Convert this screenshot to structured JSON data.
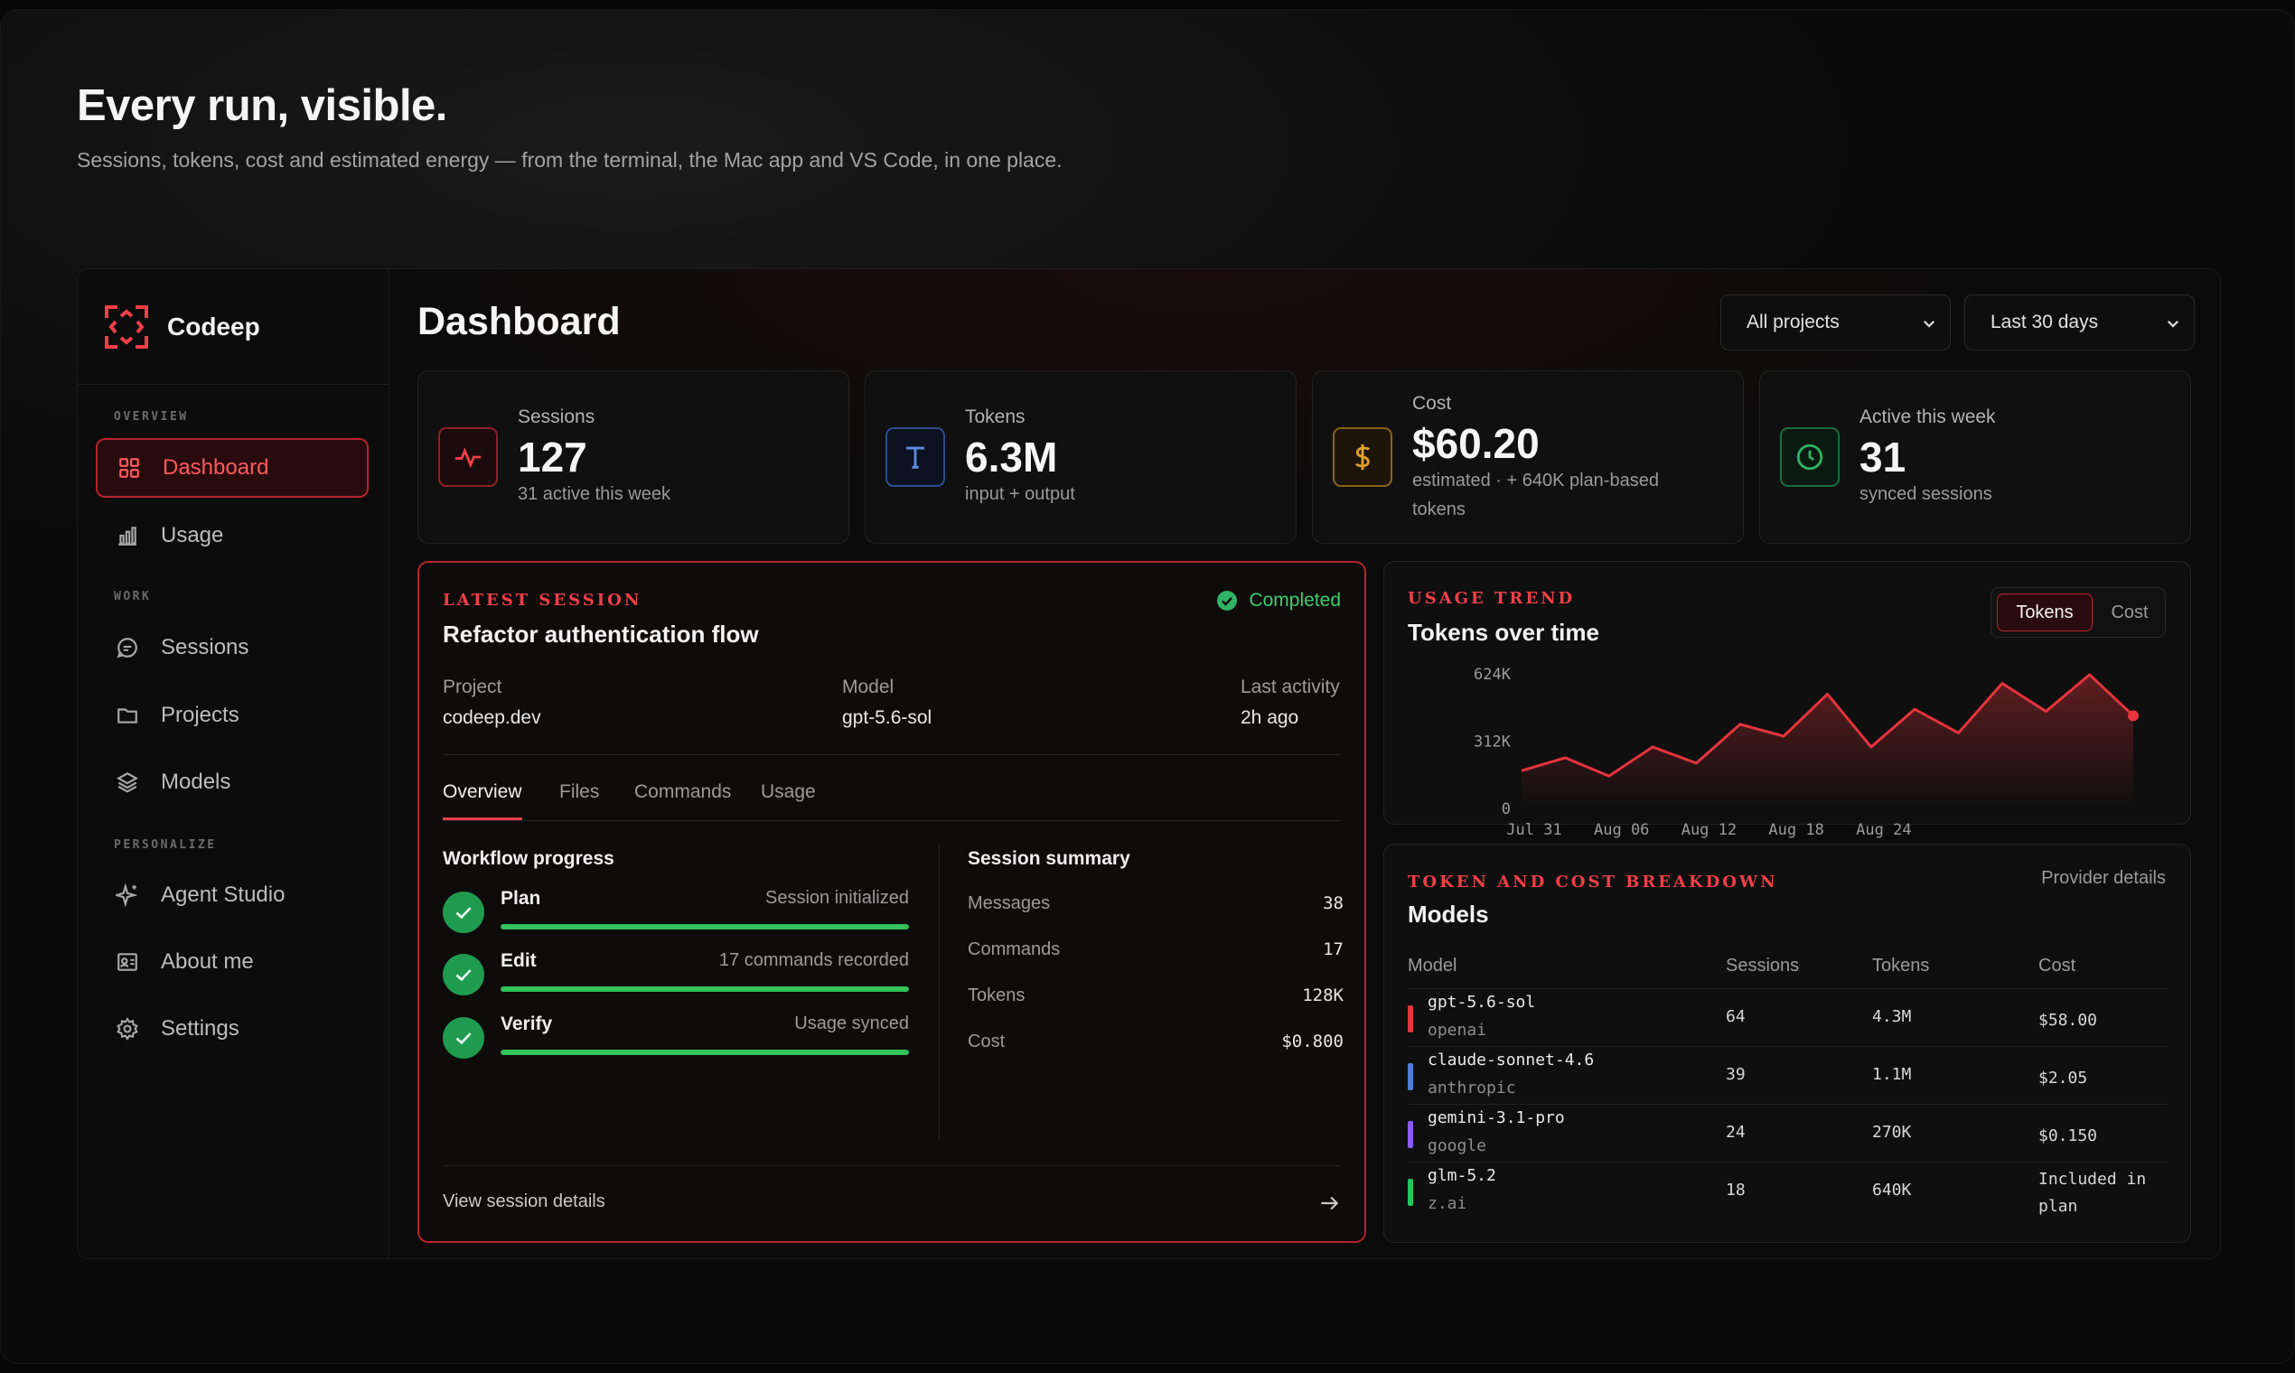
{
  "hero": {
    "title": "Every run, visible.",
    "subtitle": "Sessions, tokens, cost and estimated energy — from the terminal, the Mac app and VS Code, in one place."
  },
  "brand": {
    "name": "Codeep",
    "accent": "#ef3f47"
  },
  "sidebar": {
    "sections": [
      "OVERVIEW",
      "WORK",
      "PERSONALIZE"
    ],
    "items": [
      {
        "label": "Dashboard",
        "icon": "grid-icon",
        "active": true
      },
      {
        "label": "Usage",
        "icon": "bar-chart-icon"
      },
      {
        "label": "Sessions",
        "icon": "chat-bubble-icon"
      },
      {
        "label": "Projects",
        "icon": "folder-icon"
      },
      {
        "label": "Models",
        "icon": "layers-icon"
      },
      {
        "label": "Agent Studio",
        "icon": "sparkle-icon"
      },
      {
        "label": "About me",
        "icon": "id-card-icon"
      },
      {
        "label": "Settings",
        "icon": "gear-icon"
      }
    ]
  },
  "header": {
    "title": "Dashboard",
    "project_filter": "All projects",
    "range_filter": "Last 30 days"
  },
  "stats": [
    {
      "label": "Sessions",
      "value": "127",
      "sub": "31 active this week",
      "icon": "pulse-icon",
      "color": "#ef3f47"
    },
    {
      "label": "Tokens",
      "value": "6.3M",
      "sub": "input + output",
      "icon": "t-letter-icon",
      "color": "#4f7dd9"
    },
    {
      "label": "Cost",
      "value": "$60.20",
      "sub": "estimated · + 640K plan-based tokens",
      "icon": "dollar-icon",
      "color": "#e0a12f"
    },
    {
      "label": "Active this week",
      "value": "31",
      "sub": "synced sessions",
      "icon": "clock-icon",
      "color": "#2fb463"
    }
  ],
  "latest_session": {
    "eyebrow": "LATEST SESSION",
    "title": "Refactor authentication flow",
    "status": "Completed",
    "project_label": "Project",
    "project": "codeep.dev",
    "model_label": "Model",
    "model": "gpt-5.6-sol",
    "activity_label": "Last activity",
    "activity": "2h ago",
    "tabs": [
      "Overview",
      "Files",
      "Commands",
      "Usage"
    ],
    "workflow_title": "Workflow progress",
    "steps": [
      {
        "name": "Plan",
        "note": "Session initialized",
        "progress": 1.0
      },
      {
        "name": "Edit",
        "note": "17 commands recorded",
        "progress": 1.0
      },
      {
        "name": "Verify",
        "note": "Usage synced",
        "progress": 1.0
      }
    ],
    "summary_title": "Session summary",
    "summary": [
      {
        "label": "Messages",
        "value": "38"
      },
      {
        "label": "Commands",
        "value": "17"
      },
      {
        "label": "Tokens",
        "value": "128K"
      },
      {
        "label": "Cost",
        "value": "$0.800"
      }
    ],
    "footer_link": "View session details"
  },
  "usage_trend": {
    "eyebrow": "USAGE TREND",
    "title": "Tokens over time",
    "toggle": [
      "Tokens",
      "Cost"
    ]
  },
  "chart_data": {
    "type": "area",
    "title": "Tokens over time",
    "xlabel": "",
    "ylabel": "",
    "x_ticks": [
      "Jul 31",
      "Aug 06",
      "Aug 12",
      "Aug 18",
      "Aug 24"
    ],
    "y_ticks": [
      "624K",
      "312K",
      "0"
    ],
    "ylim": [
      0,
      624000
    ],
    "series": [
      {
        "color": "#e5343d",
        "x": [
          0,
          3,
          6,
          9,
          12,
          15,
          18,
          21,
          24,
          27,
          30,
          33,
          36,
          39,
          42
        ],
        "values": [
          175000,
          235000,
          150000,
          285000,
          210000,
          390000,
          335000,
          530000,
          285000,
          460000,
          350000,
          580000,
          450000,
          620000,
          430000
        ]
      }
    ],
    "grid": false,
    "legend": "none"
  },
  "models_card": {
    "eyebrow": "TOKEN AND COST BREAKDOWN",
    "title": "Models",
    "link": "Provider details",
    "columns": [
      "Model",
      "Sessions",
      "Tokens",
      "Cost"
    ],
    "rows": [
      {
        "model": "gpt-5.6-sol",
        "provider": "openai",
        "sessions": "64",
        "tokens": "4.3M",
        "cost": "$58.00",
        "color": "#e5343d"
      },
      {
        "model": "claude-sonnet-4.6",
        "provider": "anthropic",
        "sessions": "39",
        "tokens": "1.1M",
        "cost": "$2.05",
        "color": "#4f7dd9"
      },
      {
        "model": "gemini-3.1-pro",
        "provider": "google",
        "sessions": "24",
        "tokens": "270K",
        "cost": "$0.150",
        "color": "#8b5cf6"
      },
      {
        "model": "glm-5.2",
        "provider": "z.ai",
        "sessions": "18",
        "tokens": "640K",
        "cost": "Included in plan",
        "color": "#22c55e"
      }
    ]
  }
}
